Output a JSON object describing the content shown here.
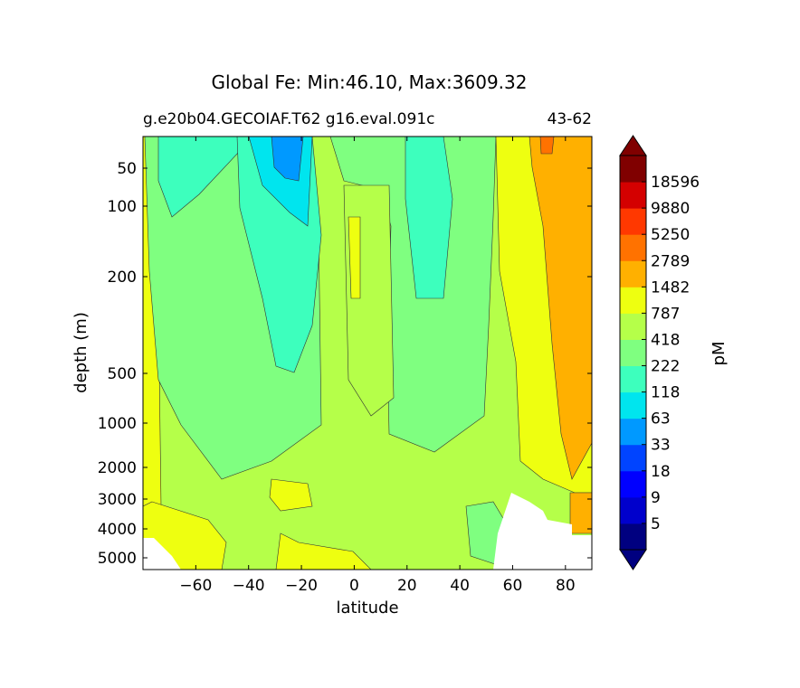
{
  "chart_data": {
    "type": "heatmap",
    "title": "Global Fe: Min:46.10, Max:3609.32",
    "subtitle_left": "g.e20b04.GECOIAF.T62 g16.eval.091c",
    "subtitle_right": "43-62",
    "xlabel": "latitude",
    "ylabel": "depth (m)",
    "xlim": [
      -80,
      90
    ],
    "x_ticks": [
      -60,
      -40,
      -20,
      0,
      20,
      40,
      60,
      80
    ],
    "x_tick_labels": [
      "−60",
      "−40",
      "−20",
      "0",
      "20",
      "40",
      "60",
      "80"
    ],
    "y_ticks": [
      50,
      100,
      200,
      500,
      1000,
      2000,
      3000,
      4000,
      5000
    ],
    "y_tick_labels": [
      "50",
      "100",
      "200",
      "500",
      "1000",
      "2000",
      "3000",
      "4000",
      "5000"
    ],
    "y_inverted": true,
    "colorbar": {
      "label": "pM",
      "levels": [
        5,
        9,
        18,
        33,
        63,
        118,
        222,
        418,
        787,
        1482,
        2789,
        5250,
        9880,
        18596
      ],
      "level_labels": [
        "5",
        "9",
        "18",
        "33",
        "63",
        "118",
        "222",
        "418",
        "787",
        "1482",
        "2789",
        "5250",
        "9880",
        "18596"
      ],
      "colors": [
        "#000080",
        "#0000cc",
        "#0000ff",
        "#0044ff",
        "#0099ff",
        "#00e5ee",
        "#3dffbd",
        "#7fff80",
        "#b5ff49",
        "#eeff10",
        "#ffb000",
        "#ff7200",
        "#ff3800",
        "#d40000",
        "#800000"
      ],
      "extend": "both"
    },
    "missing_color": "#ffffff",
    "line_color": "#333333"
  }
}
